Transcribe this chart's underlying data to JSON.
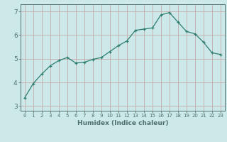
{
  "x": [
    0,
    1,
    2,
    3,
    4,
    5,
    6,
    7,
    8,
    9,
    10,
    11,
    12,
    13,
    14,
    15,
    16,
    17,
    18,
    19,
    20,
    21,
    22,
    23
  ],
  "y": [
    3.35,
    3.95,
    4.35,
    4.7,
    4.92,
    5.05,
    4.82,
    4.85,
    4.97,
    5.05,
    5.3,
    5.55,
    5.75,
    6.2,
    6.25,
    6.3,
    6.85,
    6.95,
    6.55,
    6.15,
    6.05,
    5.7,
    5.25,
    5.18
  ],
  "xlabel": "Humidex (Indice chaleur)",
  "xlim": [
    -0.5,
    23.5
  ],
  "ylim": [
    2.8,
    7.3
  ],
  "yticks": [
    3,
    4,
    5,
    6,
    7
  ],
  "xticks": [
    0,
    1,
    2,
    3,
    4,
    5,
    6,
    7,
    8,
    9,
    10,
    11,
    12,
    13,
    14,
    15,
    16,
    17,
    18,
    19,
    20,
    21,
    22,
    23
  ],
  "line_color": "#2d7d6f",
  "bg_color": "#cce8e8",
  "grid_color_h": "#c4a0a0",
  "grid_color_v": "#c4a0a0",
  "axes_color": "#507070"
}
